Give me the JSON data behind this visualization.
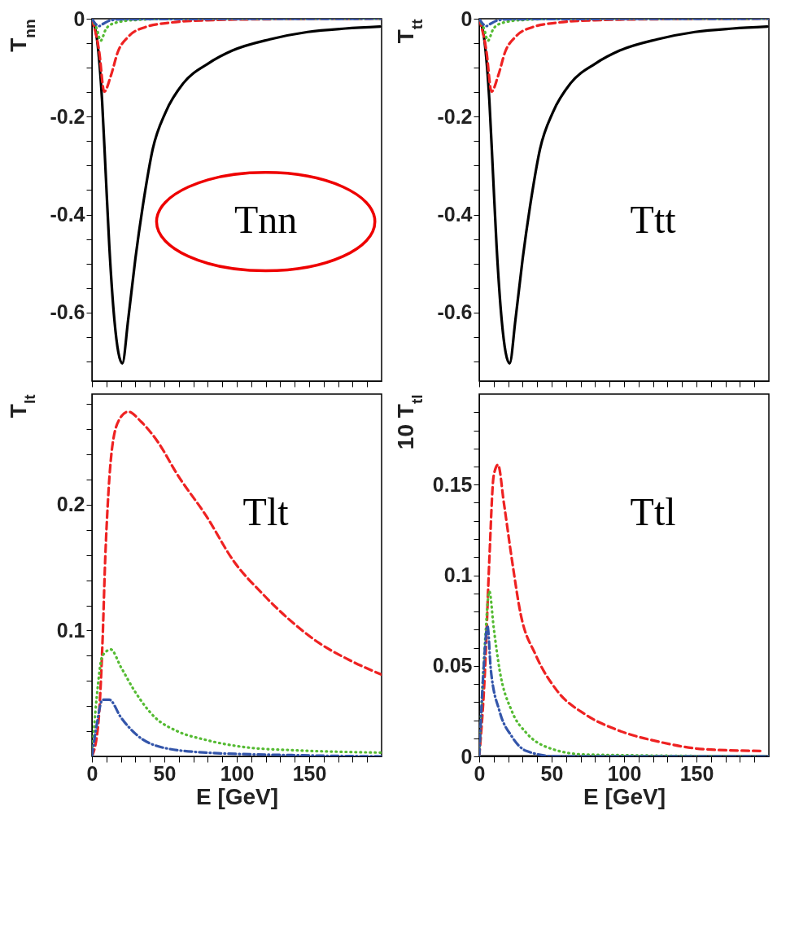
{
  "chart_data": [
    {
      "type": "line",
      "ylabel": "T$_{nn}$",
      "xlim": [
        0,
        200
      ],
      "ylim": [
        -0.74,
        0
      ],
      "tick_labels": "y",
      "grid": false,
      "xticks": [
        0,
        {
          "value": 10,
          "label": null
        },
        {
          "value": 20,
          "label": null
        },
        {
          "value": 30,
          "label": null
        },
        {
          "value": 40,
          "label": null
        },
        50,
        {
          "value": 60,
          "label": null
        },
        {
          "value": 70,
          "label": null
        },
        {
          "value": 80,
          "label": null
        },
        {
          "value": 90,
          "label": null
        },
        100,
        {
          "value": 110,
          "label": null
        },
        {
          "value": 120,
          "label": null
        },
        {
          "value": 130,
          "label": null
        },
        {
          "value": 140,
          "label": null
        },
        150,
        {
          "value": 160,
          "label": null
        },
        {
          "value": 170,
          "label": null
        },
        {
          "value": 180,
          "label": null
        },
        {
          "value": 190,
          "label": null
        }
      ],
      "yticks": [
        0,
        {
          "value": -0.05,
          "label": null
        },
        {
          "value": -0.1,
          "label": null
        },
        {
          "value": -0.15,
          "label": null
        },
        -0.2,
        {
          "value": -0.25,
          "label": null
        },
        {
          "value": -0.3,
          "label": null
        },
        {
          "value": -0.35,
          "label": null
        },
        -0.4,
        {
          "value": -0.45,
          "label": null
        },
        {
          "value": -0.5,
          "label": null
        },
        {
          "value": -0.55,
          "label": null
        },
        -0.6,
        {
          "value": -0.65,
          "label": null
        },
        {
          "value": -0.7,
          "label": null
        }
      ],
      "annotations": [
        "Tnn"
      ],
      "series": [
        {
          "color": "#000000",
          "line_style": "solid",
          "x": [
            0,
            3.5,
            7,
            9.5,
            12,
            15.5,
            21,
            25,
            30,
            36,
            42,
            51,
            63,
            80,
            97,
            123,
            149,
            175,
            199
          ],
          "values": [
            0,
            -0.042,
            -0.167,
            -0.316,
            -0.465,
            -0.615,
            -0.704,
            -0.615,
            -0.49,
            -0.366,
            -0.266,
            -0.19,
            -0.132,
            -0.092,
            -0.065,
            -0.042,
            -0.027,
            -0.02,
            -0.016
          ]
        },
        {
          "color": "#ee2222",
          "line_style": "dashed",
          "x": [
            0,
            5,
            8.5,
            13,
            18,
            25,
            37,
            54,
            80,
            120,
            200
          ],
          "values": [
            0,
            -0.067,
            -0.149,
            -0.117,
            -0.067,
            -0.037,
            -0.017,
            -0.008,
            -0.003,
            -0.001,
            0
          ]
        },
        {
          "color": "#55bb33",
          "line_style": "dotted",
          "x": [
            0,
            3.5,
            6,
            9.5,
            14.5,
            28,
            60,
            200
          ],
          "values": [
            0,
            -0.022,
            -0.045,
            -0.022,
            -0.01,
            -0.003,
            0,
            0
          ]
        },
        {
          "color": "#3355aa",
          "line_style": "dashdot",
          "x": [
            0,
            3,
            5,
            8,
            12,
            20,
            200
          ],
          "values": [
            0,
            -0.012,
            -0.015,
            -0.01,
            -0.004,
            -0.001,
            0
          ]
        }
      ]
    },
    {
      "type": "line",
      "ylabel": "T$_{tt}$",
      "xlim": [
        0,
        200
      ],
      "ylim": [
        -0.74,
        0
      ],
      "tick_labels": "y",
      "grid": false,
      "xticks": [
        0,
        {
          "value": 10,
          "label": null
        },
        {
          "value": 20,
          "label": null
        },
        {
          "value": 30,
          "label": null
        },
        {
          "value": 40,
          "label": null
        },
        50,
        {
          "value": 60,
          "label": null
        },
        {
          "value": 70,
          "label": null
        },
        {
          "value": 80,
          "label": null
        },
        {
          "value": 90,
          "label": null
        },
        100,
        {
          "value": 110,
          "label": null
        },
        {
          "value": 120,
          "label": null
        },
        {
          "value": 130,
          "label": null
        },
        {
          "value": 140,
          "label": null
        },
        150,
        {
          "value": 160,
          "label": null
        },
        {
          "value": 170,
          "label": null
        },
        {
          "value": 180,
          "label": null
        },
        {
          "value": 190,
          "label": null
        }
      ],
      "yticks": [
        0,
        {
          "value": -0.05,
          "label": null
        },
        {
          "value": -0.1,
          "label": null
        },
        {
          "value": -0.15,
          "label": null
        },
        -0.2,
        {
          "value": -0.25,
          "label": null
        },
        {
          "value": -0.3,
          "label": null
        },
        {
          "value": -0.35,
          "label": null
        },
        -0.4,
        {
          "value": -0.45,
          "label": null
        },
        {
          "value": -0.5,
          "label": null
        },
        {
          "value": -0.55,
          "label": null
        },
        -0.6,
        {
          "value": -0.65,
          "label": null
        },
        {
          "value": -0.7,
          "label": null
        }
      ],
      "annotations": [
        "Ttt"
      ],
      "series": [
        {
          "color": "#000000",
          "line_style": "solid",
          "x": [
            0,
            3.5,
            7,
            9.5,
            12,
            15.5,
            21,
            25,
            30,
            36,
            42,
            51,
            63,
            80,
            97,
            123,
            149,
            175,
            199
          ],
          "values": [
            0,
            -0.042,
            -0.167,
            -0.316,
            -0.465,
            -0.615,
            -0.704,
            -0.615,
            -0.49,
            -0.366,
            -0.266,
            -0.19,
            -0.132,
            -0.092,
            -0.065,
            -0.042,
            -0.027,
            -0.02,
            -0.016
          ]
        },
        {
          "color": "#ee2222",
          "line_style": "dashed",
          "x": [
            0,
            5,
            8.5,
            13,
            18,
            25,
            37,
            54,
            80,
            120,
            200
          ],
          "values": [
            0,
            -0.067,
            -0.149,
            -0.117,
            -0.067,
            -0.037,
            -0.017,
            -0.008,
            -0.003,
            -0.001,
            0
          ]
        },
        {
          "color": "#55bb33",
          "line_style": "dotted",
          "x": [
            0,
            3.5,
            6,
            9.5,
            14.5,
            28,
            60,
            200
          ],
          "values": [
            0,
            -0.022,
            -0.045,
            -0.022,
            -0.01,
            -0.003,
            0,
            0
          ]
        },
        {
          "color": "#3355aa",
          "line_style": "dashdot",
          "x": [
            0,
            3,
            5,
            8,
            12,
            20,
            200
          ],
          "values": [
            0,
            -0.012,
            -0.015,
            -0.01,
            -0.004,
            -0.001,
            0
          ]
        }
      ]
    },
    {
      "type": "line",
      "ylabel": "T$_{lt}$",
      "xlabel": "E [GeV]",
      "xlim": [
        0,
        200
      ],
      "ylim": [
        0,
        0.288
      ],
      "grid": false,
      "xticks": [
        0,
        {
          "value": 10,
          "label": null
        },
        {
          "value": 20,
          "label": null
        },
        {
          "value": 30,
          "label": null
        },
        {
          "value": 40,
          "label": null
        },
        50,
        {
          "value": 60,
          "label": null
        },
        {
          "value": 70,
          "label": null
        },
        {
          "value": 80,
          "label": null
        },
        {
          "value": 90,
          "label": null
        },
        100,
        {
          "value": 110,
          "label": null
        },
        {
          "value": 120,
          "label": null
        },
        {
          "value": 130,
          "label": null
        },
        {
          "value": 140,
          "label": null
        },
        150,
        {
          "value": 160,
          "label": null
        },
        {
          "value": 170,
          "label": null
        },
        {
          "value": 180,
          "label": null
        },
        {
          "value": 190,
          "label": null
        }
      ],
      "yticks": [
        {
          "value": 0.02,
          "label": null
        },
        {
          "value": 0.04,
          "label": null
        },
        {
          "value": 0.06,
          "label": null
        },
        {
          "value": 0.08,
          "label": null
        },
        0.1,
        {
          "value": 0.12,
          "label": null
        },
        {
          "value": 0.14,
          "label": null
        },
        {
          "value": 0.16,
          "label": null
        },
        {
          "value": 0.18,
          "label": null
        },
        0.2,
        {
          "value": 0.22,
          "label": null
        },
        {
          "value": 0.24,
          "label": null
        },
        {
          "value": 0.26,
          "label": null
        },
        {
          "value": 0.28,
          "label": null
        }
      ],
      "annotations": [
        "Tlt"
      ],
      "series": [
        {
          "color": "#ee2222",
          "line_style": "dashed",
          "x": [
            0,
            4.3,
            7.3,
            9.2,
            11,
            14,
            19,
            25,
            34,
            45.5,
            59,
            79,
            98,
            118,
            138,
            157,
            177,
            200
          ],
          "values": [
            0,
            0.025,
            0.091,
            0.158,
            0.202,
            0.246,
            0.268,
            0.274,
            0.266,
            0.25,
            0.224,
            0.191,
            0.155,
            0.129,
            0.107,
            0.09,
            0.077,
            0.065
          ]
        },
        {
          "color": "#55bb33",
          "line_style": "dotted",
          "x": [
            0,
            3.3,
            7.3,
            13,
            20,
            30,
            43.5,
            59,
            79,
            108,
            138,
            200
          ],
          "values": [
            0,
            0.047,
            0.08,
            0.085,
            0.071,
            0.051,
            0.031,
            0.02,
            0.013,
            0.007,
            0.005,
            0.003
          ]
        },
        {
          "color": "#3355aa",
          "line_style": "dashdot",
          "x": [
            0,
            3.3,
            7.3,
            12,
            20,
            30,
            49,
            79,
            138,
            200
          ],
          "values": [
            0,
            0.025,
            0.045,
            0.045,
            0.031,
            0.018,
            0.007,
            0.003,
            0.001,
            0
          ]
        }
      ]
    },
    {
      "type": "line",
      "ylabel": "10 T$_{tl}$",
      "xlabel": "E [GeV]",
      "xlim": [
        0,
        200
      ],
      "ylim": [
        0,
        0.2
      ],
      "grid": false,
      "xticks": [
        0,
        {
          "value": 10,
          "label": null
        },
        {
          "value": 20,
          "label": null
        },
        {
          "value": 30,
          "label": null
        },
        {
          "value": 40,
          "label": null
        },
        50,
        {
          "value": 60,
          "label": null
        },
        {
          "value": 70,
          "label": null
        },
        {
          "value": 80,
          "label": null
        },
        {
          "value": 90,
          "label": null
        },
        100,
        {
          "value": 110,
          "label": null
        },
        {
          "value": 120,
          "label": null
        },
        {
          "value": 130,
          "label": null
        },
        {
          "value": 140,
          "label": null
        },
        150,
        {
          "value": 160,
          "label": null
        },
        {
          "value": 170,
          "label": null
        },
        {
          "value": 180,
          "label": null
        },
        {
          "value": 190,
          "label": null
        }
      ],
      "yticks": [
        0,
        {
          "value": 0.01,
          "label": null
        },
        {
          "value": 0.02,
          "label": null
        },
        {
          "value": 0.03,
          "label": null
        },
        {
          "value": 0.04,
          "label": null
        },
        0.05,
        {
          "value": 0.06,
          "label": null
        },
        {
          "value": 0.07,
          "label": null
        },
        {
          "value": 0.08,
          "label": null
        },
        {
          "value": 0.09,
          "label": null
        },
        0.1,
        {
          "value": 0.11,
          "label": null
        },
        {
          "value": 0.12,
          "label": null
        },
        {
          "value": 0.13,
          "label": null
        },
        {
          "value": 0.14,
          "label": null
        },
        0.15,
        {
          "value": 0.16,
          "label": null
        },
        {
          "value": 0.17,
          "label": null
        },
        {
          "value": 0.18,
          "label": null
        },
        {
          "value": 0.19,
          "label": null
        }
      ],
      "annotations": [
        "Ttl"
      ],
      "series": [
        {
          "color": "#000000",
          "line_style": "solid",
          "x": [
            0,
            200
          ],
          "values": [
            0,
            0
          ]
        },
        {
          "color": "#ee2222",
          "line_style": "dashed",
          "x": [
            0,
            4,
            7,
            10,
            13,
            17,
            22.5,
            28.5,
            39,
            53,
            73.5,
            94,
            124.5,
            155,
            194
          ],
          "values": [
            0,
            0.048,
            0.109,
            0.155,
            0.161,
            0.14,
            0.109,
            0.079,
            0.056,
            0.037,
            0.023,
            0.015,
            0.008,
            0.004,
            0.003
          ]
        },
        {
          "color": "#55bb33",
          "line_style": "dotted",
          "x": [
            0,
            4,
            7,
            10,
            14,
            22.5,
            32.5,
            47,
            73.5,
            200
          ],
          "values": [
            0,
            0.063,
            0.091,
            0.071,
            0.048,
            0.025,
            0.013,
            0.005,
            0.001,
            0
          ]
        },
        {
          "color": "#3355aa",
          "line_style": "dashdot",
          "x": [
            0,
            3,
            5.7,
            8,
            14,
            22.5,
            32.5,
            53,
            200
          ],
          "values": [
            0,
            0.048,
            0.072,
            0.048,
            0.025,
            0.011,
            0.003,
            0,
            0
          ]
        }
      ]
    }
  ]
}
